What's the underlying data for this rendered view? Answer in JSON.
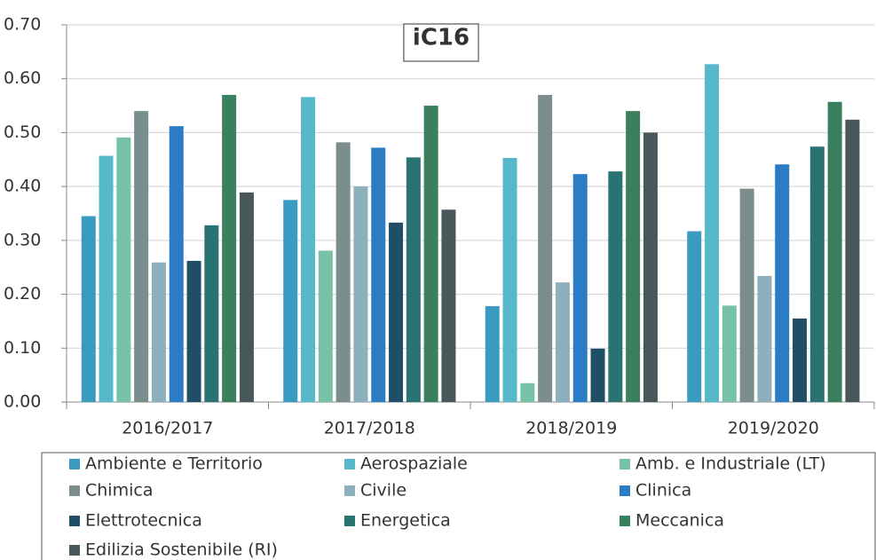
{
  "chart_data": {
    "type": "bar",
    "title": "iC16",
    "categories": [
      "2016/2017",
      "2017/2018",
      "2018/2019",
      "2019/2020"
    ],
    "series": [
      {
        "name": "Ambiente e Territorio",
        "color": "#3a9bc1",
        "values": [
          0.345,
          0.375,
          0.178,
          0.317
        ]
      },
      {
        "name": "Aerospaziale",
        "color": "#56b8c8",
        "values": [
          0.457,
          0.566,
          0.453,
          0.627
        ]
      },
      {
        "name": "Amb. e Industriale (LT)",
        "color": "#77c2a6",
        "values": [
          0.491,
          0.281,
          0.035,
          0.179
        ]
      },
      {
        "name": "Chimica",
        "color": "#7a8e8e",
        "values": [
          0.54,
          0.482,
          0.57,
          0.396
        ]
      },
      {
        "name": "Civile",
        "color": "#8cb0bd",
        "values": [
          0.259,
          0.4,
          0.222,
          0.234
        ]
      },
      {
        "name": "Clinica",
        "color": "#2a7dc4",
        "values": [
          0.512,
          0.472,
          0.423,
          0.441
        ]
      },
      {
        "name": "Elettrotecnica",
        "color": "#1e4f66",
        "values": [
          0.262,
          0.333,
          0.099,
          0.155
        ]
      },
      {
        "name": "Energetica",
        "color": "#2a7373",
        "values": [
          0.328,
          0.454,
          0.428,
          0.474
        ]
      },
      {
        "name": "Meccanica",
        "color": "#3a7f5e",
        "values": [
          0.57,
          0.55,
          0.54,
          0.557
        ]
      },
      {
        "name": "Edilizia Sostenibile (RI)",
        "color": "#48575a",
        "values": [
          0.389,
          0.357,
          0.5,
          0.524
        ]
      }
    ],
    "ylim": [
      0,
      0.7
    ],
    "yticks": [
      {
        "value": 0,
        "label": "0.00"
      },
      {
        "value": 0.1,
        "label": "0.10"
      },
      {
        "value": 0.2,
        "label": "0.20"
      },
      {
        "value": 0.3,
        "label": "0.30"
      },
      {
        "value": 0.4,
        "label": "0.40"
      },
      {
        "value": 0.5,
        "label": "0.50"
      },
      {
        "value": 0.6,
        "label": "0.60"
      },
      {
        "value": 0.7,
        "label": "0.70"
      }
    ],
    "grid": true
  }
}
